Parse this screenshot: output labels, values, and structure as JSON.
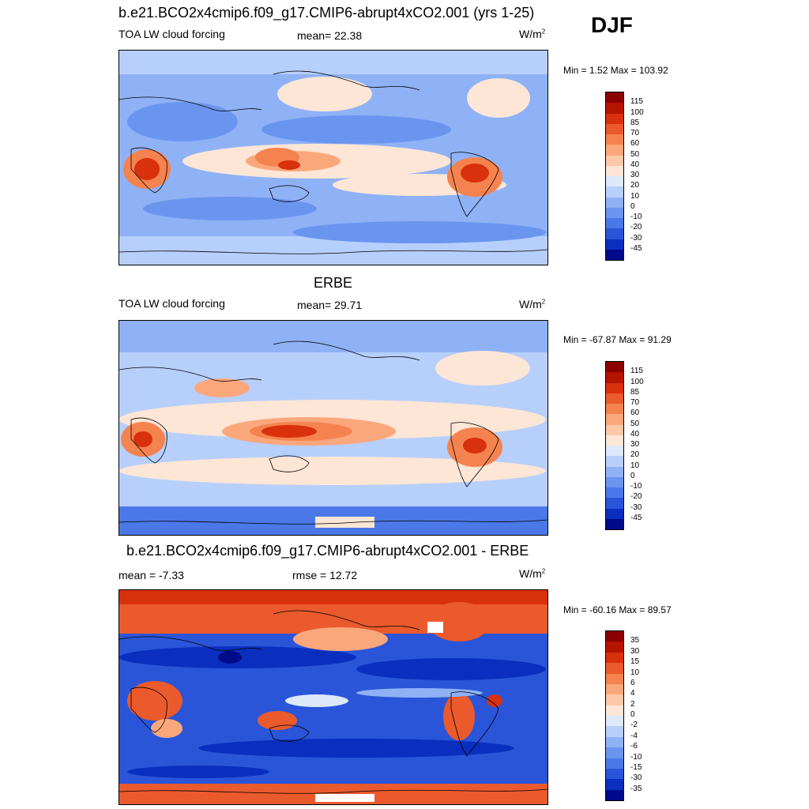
{
  "season": "DJF",
  "panels": [
    {
      "id": "model",
      "title": "b.e21.BCO2x4cmip6.f09_g17.CMIP6-abrupt4xCO2.001 (yrs 1-25)",
      "left_label": "TOA LW cloud forcing",
      "center_label": "mean=  22.38",
      "units_base": "W/m",
      "units_exp": "2",
      "minmax": "Min =   1.52 Max = 103.92",
      "colorbar_labels": [
        "115",
        "100",
        "85",
        "70",
        "60",
        "50",
        "40",
        "30",
        "20",
        "10",
        "0",
        "-10",
        "-20",
        "-30",
        "-45"
      ],
      "colorbar_colors": [
        "#8b0000",
        "#b51400",
        "#d9300d",
        "#eb5a2c",
        "#f5834f",
        "#fba77c",
        "#fdc8a8",
        "#fde6d6",
        "#dde9fb",
        "#b7cffb",
        "#8fb2f6",
        "#6a95ef",
        "#4a78e8",
        "#2a55d8",
        "#0a2fbe",
        "#000a8a"
      ]
    },
    {
      "id": "obs",
      "title": "ERBE",
      "left_label": "TOA LW cloud forcing",
      "center_label": "mean=  29.71",
      "units_base": "W/m",
      "units_exp": "2",
      "minmax": "Min = -67.87 Max =  91.29",
      "colorbar_labels": [
        "115",
        "100",
        "85",
        "70",
        "60",
        "50",
        "40",
        "30",
        "20",
        "10",
        "0",
        "-10",
        "-20",
        "-30",
        "-45"
      ],
      "colorbar_colors": [
        "#8b0000",
        "#b51400",
        "#d9300d",
        "#eb5a2c",
        "#f5834f",
        "#fba77c",
        "#fdc8a8",
        "#fde6d6",
        "#dde9fb",
        "#b7cffb",
        "#8fb2f6",
        "#6a95ef",
        "#4a78e8",
        "#2a55d8",
        "#0a2fbe",
        "#000a8a"
      ]
    },
    {
      "id": "diff",
      "title": "b.e21.BCO2x4cmip6.f09_g17.CMIP6-abrupt4xCO2.001 - ERBE",
      "left_label": "mean =  -7.33",
      "center_label": "rmse =  12.72",
      "units_base": "W/m",
      "units_exp": "2",
      "minmax": "Min = -60.16 Max =  89.57",
      "colorbar_labels": [
        "35",
        "30",
        "15",
        "10",
        "6",
        "4",
        "2",
        "0",
        "-2",
        "-4",
        "-6",
        "-10",
        "-15",
        "-30",
        "-35"
      ],
      "colorbar_colors": [
        "#8b0000",
        "#b51400",
        "#d9300d",
        "#eb5a2c",
        "#f5834f",
        "#fba77c",
        "#fdc8a8",
        "#fde6d6",
        "#dde9fb",
        "#b7cffb",
        "#8fb2f6",
        "#6a95ef",
        "#4a78e8",
        "#2a55d8",
        "#0a2fbe",
        "#000a8a"
      ]
    }
  ],
  "chart_data": [
    {
      "type": "heatmap",
      "title": "b.e21.BCO2x4cmip6.f09_g17.CMIP6-abrupt4xCO2.001 (yrs 1-25)",
      "variable": "TOA LW cloud forcing",
      "units": "W/m2",
      "mean": 22.38,
      "min": 1.52,
      "max": 103.92,
      "levels": [
        -45,
        -30,
        -20,
        -10,
        0,
        10,
        20,
        30,
        40,
        50,
        60,
        70,
        85,
        100,
        115
      ]
    },
    {
      "type": "heatmap",
      "title": "ERBE",
      "variable": "TOA LW cloud forcing",
      "units": "W/m2",
      "mean": 29.71,
      "min": -67.87,
      "max": 91.29,
      "levels": [
        -45,
        -30,
        -20,
        -10,
        0,
        10,
        20,
        30,
        40,
        50,
        60,
        70,
        85,
        100,
        115
      ]
    },
    {
      "type": "heatmap",
      "title": "b.e21.BCO2x4cmip6.f09_g17.CMIP6-abrupt4xCO2.001 - ERBE",
      "units": "W/m2",
      "mean": -7.33,
      "rmse": 12.72,
      "min": -60.16,
      "max": 89.57,
      "levels": [
        -35,
        -30,
        -15,
        -10,
        -6,
        -4,
        -2,
        0,
        2,
        4,
        6,
        10,
        15,
        30,
        35
      ]
    }
  ]
}
